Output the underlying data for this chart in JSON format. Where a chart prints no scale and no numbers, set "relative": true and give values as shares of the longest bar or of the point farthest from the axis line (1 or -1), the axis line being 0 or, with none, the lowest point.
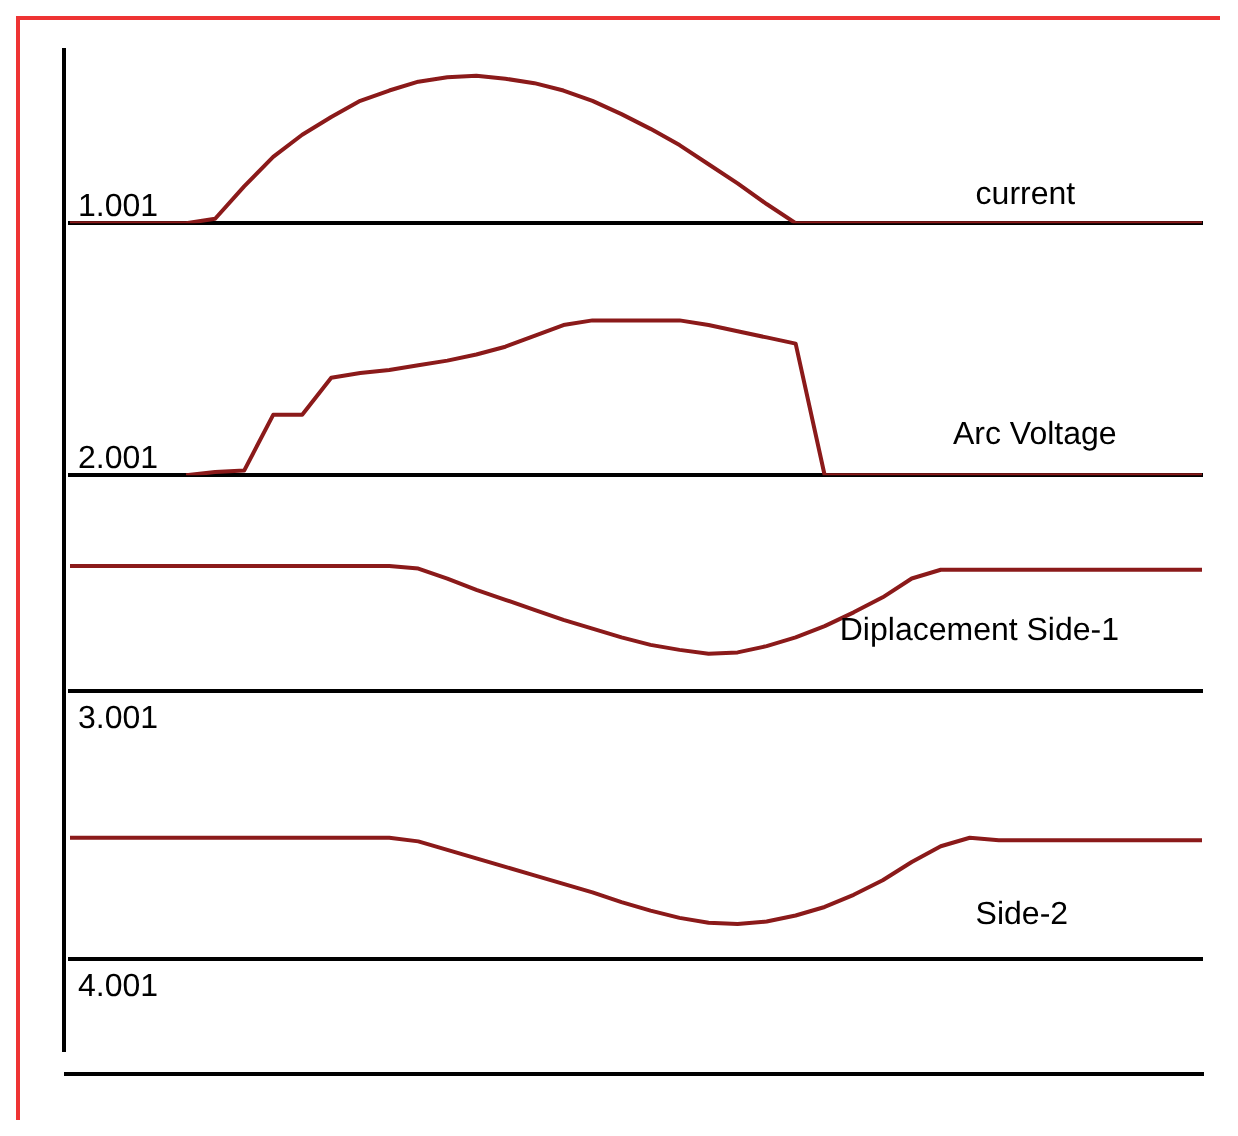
{
  "chart_data": [
    {
      "type": "line",
      "relative": true,
      "marker": "none",
      "annotations": [
        "1.001"
      ],
      "categories": [
        null,
        null,
        null,
        null,
        null,
        null,
        null,
        null,
        null,
        null,
        null,
        null,
        null,
        null,
        null,
        null,
        null,
        null,
        null,
        null,
        null,
        null,
        null,
        null,
        null,
        null,
        null,
        null,
        null,
        null,
        null,
        null,
        null,
        null,
        null,
        null,
        null,
        null,
        null,
        null
      ],
      "series": [
        {
          "name": "current",
          "color": "#8b1a1a",
          "values": [
            0,
            0,
            0,
            0,
            0,
            0.03,
            0.25,
            0.45,
            0.6,
            0.72,
            0.83,
            0.9,
            0.96,
            0.99,
            1,
            0.98,
            0.95,
            0.9,
            0.83,
            0.74,
            0.64,
            0.53,
            0.4,
            0.27,
            0.13,
            0,
            0,
            0,
            0,
            0,
            0,
            0,
            0,
            0,
            0,
            0,
            0,
            0,
            0,
            0
          ]
        }
      ]
    },
    {
      "type": "line",
      "relative": true,
      "marker": "none",
      "annotations": [
        "2.001"
      ],
      "categories": [
        null,
        null,
        null,
        null,
        null,
        null,
        null,
        null,
        null,
        null,
        null,
        null,
        null,
        null,
        null,
        null,
        null,
        null,
        null,
        null,
        null,
        null,
        null,
        null,
        null,
        null,
        null,
        null,
        null,
        null,
        null,
        null,
        null,
        null,
        null,
        null,
        null,
        null,
        null,
        null
      ],
      "series": [
        {
          "name": "Arc Voltage",
          "color": "#8b1a1a",
          "values": [
            null,
            null,
            null,
            null,
            0,
            0.02,
            0.03,
            0.39,
            0.39,
            0.63,
            0.66,
            0.68,
            0.71,
            0.74,
            0.78,
            0.83,
            0.9,
            0.97,
            1,
            1,
            1,
            1,
            0.97,
            0.93,
            0.89,
            0.85,
            0,
            0,
            0,
            0,
            0,
            0,
            0,
            0,
            0,
            0,
            0,
            0,
            0,
            0
          ]
        }
      ]
    },
    {
      "type": "line",
      "relative": true,
      "marker": "none",
      "annotations": [
        "3.001"
      ],
      "categories": [
        null,
        null,
        null,
        null,
        null,
        null,
        null,
        null,
        null,
        null,
        null,
        null,
        null,
        null,
        null,
        null,
        null,
        null,
        null,
        null,
        null,
        null,
        null,
        null,
        null,
        null,
        null,
        null,
        null,
        null,
        null,
        null,
        null,
        null,
        null,
        null,
        null,
        null,
        null,
        null
      ],
      "series": [
        {
          "name": "Diplacement Side-1",
          "color": "#8b1a1a",
          "values": [
            1,
            1,
            1,
            1,
            1,
            1,
            1,
            1,
            1,
            1,
            1,
            1,
            0.98,
            0.9,
            0.81,
            0.73,
            0.65,
            0.57,
            0.5,
            0.43,
            0.37,
            0.33,
            0.3,
            0.31,
            0.36,
            0.43,
            0.52,
            0.63,
            0.75,
            0.9,
            0.97,
            0.97,
            0.97,
            0.97,
            0.97,
            0.97,
            0.97,
            0.97,
            0.97,
            0.97
          ]
        }
      ]
    },
    {
      "type": "line",
      "relative": true,
      "marker": "none",
      "annotations": [
        "4.001"
      ],
      "categories": [
        null,
        null,
        null,
        null,
        null,
        null,
        null,
        null,
        null,
        null,
        null,
        null,
        null,
        null,
        null,
        null,
        null,
        null,
        null,
        null,
        null,
        null,
        null,
        null,
        null,
        null,
        null,
        null,
        null,
        null,
        null,
        null,
        null,
        null,
        null,
        null,
        null,
        null,
        null,
        null
      ],
      "series": [
        {
          "name": "Side-2",
          "color": "#8b1a1a",
          "values": [
            1,
            1,
            1,
            1,
            1,
            1,
            1,
            1,
            1,
            1,
            1,
            1,
            0.97,
            0.9,
            0.83,
            0.76,
            0.69,
            0.62,
            0.55,
            0.47,
            0.4,
            0.34,
            0.3,
            0.29,
            0.31,
            0.36,
            0.43,
            0.53,
            0.65,
            0.8,
            0.93,
            1,
            0.98,
            0.98,
            0.98,
            0.98,
            0.98,
            0.98,
            0.98,
            0.98
          ]
        }
      ]
    }
  ]
}
